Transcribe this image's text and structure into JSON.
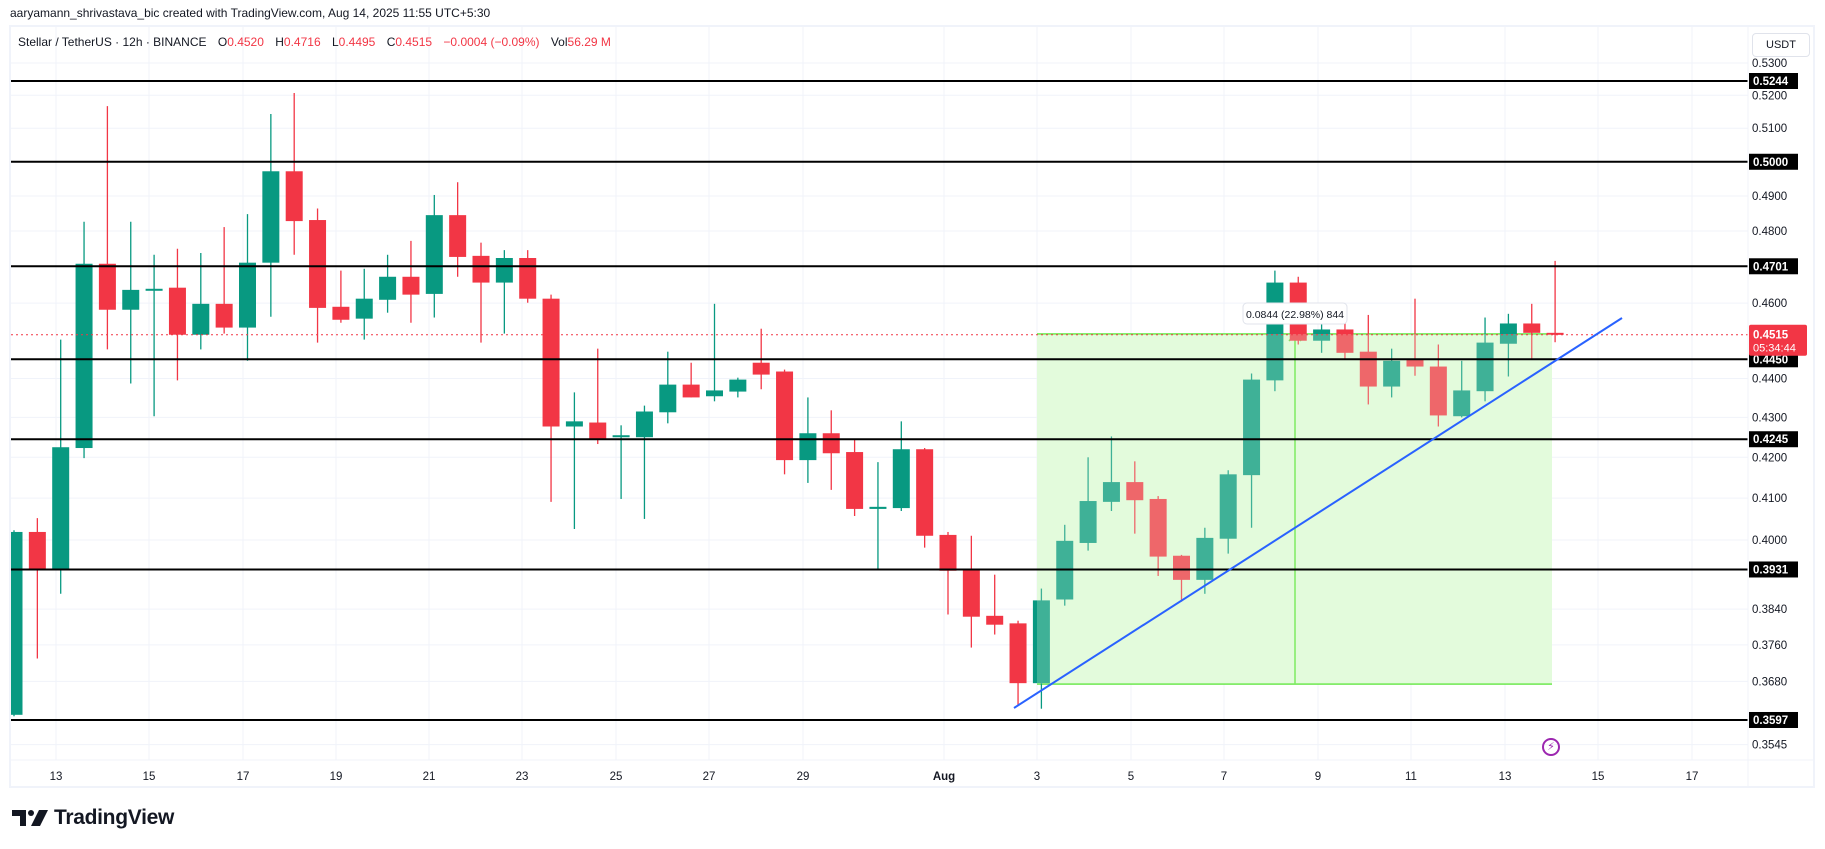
{
  "credit": "aaryamann_shrivastava_bic created with TradingView.com, Aug 14, 2025 11:55 UTC+5:30",
  "legend": {
    "symbol": "Stellar / TetherUS · 12h · BINANCE",
    "open_label": "O",
    "open": "0.4520",
    "high_label": "H",
    "high": "0.4716",
    "low_label": "L",
    "low": "0.4495",
    "close_label": "C",
    "close": "0.4515",
    "change": "−0.0004 (−0.09%)",
    "vol_label": "Vol",
    "vol": "56.29 M"
  },
  "currency": "USDT",
  "colors": {
    "up": "#089981",
    "down": "#F23645",
    "level_line": "#000000",
    "trendline": "#2962FF",
    "measure_fill": "#E3FBDC",
    "measure_line": "#5CE63A",
    "last_price": "#F23645",
    "grid": "#F0F3FA"
  },
  "price_axis": {
    "ticks": [
      "0.5300",
      "0.5200",
      "0.5100",
      "0.4900",
      "0.4800",
      "0.4600",
      "0.4400",
      "0.4300",
      "0.4200",
      "0.4100",
      "0.4000",
      "0.3840",
      "0.3760",
      "0.3680",
      "0.3545"
    ],
    "level_labels": [
      "0.5244",
      "0.5000",
      "0.4701",
      "0.4450",
      "0.4245",
      "0.3931",
      "0.3597"
    ],
    "last_price": "0.4515",
    "countdown": "05:34:44"
  },
  "time_axis": {
    "labels": [
      "13",
      "15",
      "17",
      "19",
      "21",
      "23",
      "25",
      "27",
      "29",
      "Aug",
      "3",
      "5",
      "7",
      "9",
      "11",
      "13",
      "15",
      "17"
    ]
  },
  "measure": {
    "label": "0.0844 (22.98%) 844"
  },
  "footer": {
    "logo_text": "TradingView"
  },
  "chart_data": {
    "type": "candlestick",
    "title": "Stellar / TetherUS · 12h · BINANCE",
    "xlabel": "",
    "ylabel": "USDT",
    "scale": "log",
    "ylim": [
      0.352,
      0.534
    ],
    "x_tick_labels": [
      "13",
      "15",
      "17",
      "19",
      "21",
      "23",
      "25",
      "27",
      "29",
      "Aug",
      "3",
      "5",
      "7",
      "9",
      "11",
      "13",
      "15",
      "17"
    ],
    "horizontal_levels": [
      0.5244,
      0.5,
      0.4701,
      0.445,
      0.4245,
      0.3931,
      0.3597
    ],
    "trendline": {
      "from": {
        "candle": 43,
        "price": 0.3627
      },
      "to": {
        "x_after_last_candles": 3,
        "price": 0.457
      }
    },
    "measure_range": {
      "low": 0.3676,
      "high": 0.452,
      "change": 0.0844,
      "change_pct": 22.98,
      "bars": 844
    },
    "last_price": 0.4515,
    "candles": [
      {
        "o": 0.3608,
        "h": 0.4023,
        "l": 0.3605,
        "c": 0.4019
      },
      {
        "o": 0.4019,
        "h": 0.4052,
        "l": 0.373,
        "c": 0.393
      },
      {
        "o": 0.393,
        "h": 0.4502,
        "l": 0.3875,
        "c": 0.4225
      },
      {
        "o": 0.4223,
        "h": 0.4826,
        "l": 0.4198,
        "c": 0.4708
      },
      {
        "o": 0.4708,
        "h": 0.5167,
        "l": 0.4476,
        "c": 0.4582
      },
      {
        "o": 0.4582,
        "h": 0.4826,
        "l": 0.4387,
        "c": 0.4636
      },
      {
        "o": 0.4634,
        "h": 0.4733,
        "l": 0.4303,
        "c": 0.4639
      },
      {
        "o": 0.4642,
        "h": 0.475,
        "l": 0.4395,
        "c": 0.4515
      },
      {
        "o": 0.4515,
        "h": 0.4738,
        "l": 0.4476,
        "c": 0.4598
      },
      {
        "o": 0.4598,
        "h": 0.4811,
        "l": 0.4518,
        "c": 0.4534
      },
      {
        "o": 0.4534,
        "h": 0.4848,
        "l": 0.4446,
        "c": 0.4711
      },
      {
        "o": 0.4711,
        "h": 0.5143,
        "l": 0.4563,
        "c": 0.4972
      },
      {
        "o": 0.4972,
        "h": 0.5207,
        "l": 0.4733,
        "c": 0.4828
      },
      {
        "o": 0.4831,
        "h": 0.4864,
        "l": 0.4494,
        "c": 0.4587
      },
      {
        "o": 0.459,
        "h": 0.4689,
        "l": 0.4547,
        "c": 0.4555
      },
      {
        "o": 0.4558,
        "h": 0.4694,
        "l": 0.4502,
        "c": 0.4612
      },
      {
        "o": 0.4609,
        "h": 0.4733,
        "l": 0.4574,
        "c": 0.4672
      },
      {
        "o": 0.4672,
        "h": 0.4772,
        "l": 0.4547,
        "c": 0.4623
      },
      {
        "o": 0.4625,
        "h": 0.4903,
        "l": 0.4561,
        "c": 0.4845
      },
      {
        "o": 0.4845,
        "h": 0.494,
        "l": 0.4672,
        "c": 0.4727
      },
      {
        "o": 0.473,
        "h": 0.4767,
        "l": 0.4494,
        "c": 0.4656
      },
      {
        "o": 0.4656,
        "h": 0.4746,
        "l": 0.4518,
        "c": 0.4724
      },
      {
        "o": 0.4724,
        "h": 0.4746,
        "l": 0.4601,
        "c": 0.4612
      },
      {
        "o": 0.4612,
        "h": 0.4623,
        "l": 0.4091,
        "c": 0.4277
      },
      {
        "o": 0.4277,
        "h": 0.4364,
        "l": 0.4026,
        "c": 0.429
      },
      {
        "o": 0.4287,
        "h": 0.4478,
        "l": 0.4233,
        "c": 0.4245
      },
      {
        "o": 0.425,
        "h": 0.428,
        "l": 0.4098,
        "c": 0.4255
      },
      {
        "o": 0.425,
        "h": 0.433,
        "l": 0.405,
        "c": 0.4315
      },
      {
        "o": 0.4313,
        "h": 0.447,
        "l": 0.4285,
        "c": 0.4384
      },
      {
        "o": 0.4384,
        "h": 0.4441,
        "l": 0.4351,
        "c": 0.4351
      },
      {
        "o": 0.4354,
        "h": 0.4598,
        "l": 0.4341,
        "c": 0.4369
      },
      {
        "o": 0.4366,
        "h": 0.4402,
        "l": 0.4351,
        "c": 0.4397
      },
      {
        "o": 0.4441,
        "h": 0.4531,
        "l": 0.4372,
        "c": 0.441
      },
      {
        "o": 0.4418,
        "h": 0.4423,
        "l": 0.4158,
        "c": 0.4193
      },
      {
        "o": 0.4193,
        "h": 0.4351,
        "l": 0.4137,
        "c": 0.426
      },
      {
        "o": 0.426,
        "h": 0.4318,
        "l": 0.412,
        "c": 0.421
      },
      {
        "o": 0.4213,
        "h": 0.4245,
        "l": 0.4057,
        "c": 0.4074
      },
      {
        "o": 0.4074,
        "h": 0.4188,
        "l": 0.393,
        "c": 0.4079
      },
      {
        "o": 0.4076,
        "h": 0.429,
        "l": 0.4069,
        "c": 0.422
      },
      {
        "o": 0.422,
        "h": 0.4223,
        "l": 0.3982,
        "c": 0.401
      },
      {
        "o": 0.4012,
        "h": 0.4019,
        "l": 0.3828,
        "c": 0.3928
      },
      {
        "o": 0.393,
        "h": 0.401,
        "l": 0.3754,
        "c": 0.3823
      },
      {
        "o": 0.3825,
        "h": 0.3919,
        "l": 0.3783,
        "c": 0.3805
      },
      {
        "o": 0.3808,
        "h": 0.3814,
        "l": 0.3627,
        "c": 0.3676
      },
      {
        "o": 0.3676,
        "h": 0.3887,
        "l": 0.3621,
        "c": 0.386
      },
      {
        "o": 0.3862,
        "h": 0.4036,
        "l": 0.3848,
        "c": 0.3998
      },
      {
        "o": 0.3993,
        "h": 0.42,
        "l": 0.3975,
        "c": 0.4093
      },
      {
        "o": 0.4091,
        "h": 0.4252,
        "l": 0.4069,
        "c": 0.4139
      },
      {
        "o": 0.4139,
        "h": 0.419,
        "l": 0.4015,
        "c": 0.4095
      },
      {
        "o": 0.4098,
        "h": 0.4105,
        "l": 0.3916,
        "c": 0.3961
      },
      {
        "o": 0.3963,
        "h": 0.3965,
        "l": 0.3857,
        "c": 0.3907
      },
      {
        "o": 0.3907,
        "h": 0.4029,
        "l": 0.3875,
        "c": 0.4005
      },
      {
        "o": 0.4003,
        "h": 0.4168,
        "l": 0.3968,
        "c": 0.4158
      },
      {
        "o": 0.4156,
        "h": 0.4413,
        "l": 0.4029,
        "c": 0.4397
      },
      {
        "o": 0.4395,
        "h": 0.4689,
        "l": 0.4367,
        "c": 0.4656
      },
      {
        "o": 0.4656,
        "h": 0.4672,
        "l": 0.4489,
        "c": 0.4499
      },
      {
        "o": 0.4499,
        "h": 0.4568,
        "l": 0.4467,
        "c": 0.4529
      },
      {
        "o": 0.4529,
        "h": 0.4545,
        "l": 0.4449,
        "c": 0.4467
      },
      {
        "o": 0.447,
        "h": 0.4568,
        "l": 0.4333,
        "c": 0.4379
      },
      {
        "o": 0.4379,
        "h": 0.4478,
        "l": 0.4351,
        "c": 0.4446
      },
      {
        "o": 0.4449,
        "h": 0.4612,
        "l": 0.4407,
        "c": 0.4431
      },
      {
        "o": 0.4431,
        "h": 0.4489,
        "l": 0.4277,
        "c": 0.4305
      },
      {
        "o": 0.4303,
        "h": 0.4446,
        "l": 0.43,
        "c": 0.4369
      },
      {
        "o": 0.4367,
        "h": 0.4561,
        "l": 0.4341,
        "c": 0.4494
      },
      {
        "o": 0.4491,
        "h": 0.4571,
        "l": 0.4405,
        "c": 0.4545
      },
      {
        "o": 0.4545,
        "h": 0.4598,
        "l": 0.4449,
        "c": 0.452
      },
      {
        "o": 0.452,
        "h": 0.4716,
        "l": 0.4495,
        "c": 0.4515
      }
    ]
  }
}
